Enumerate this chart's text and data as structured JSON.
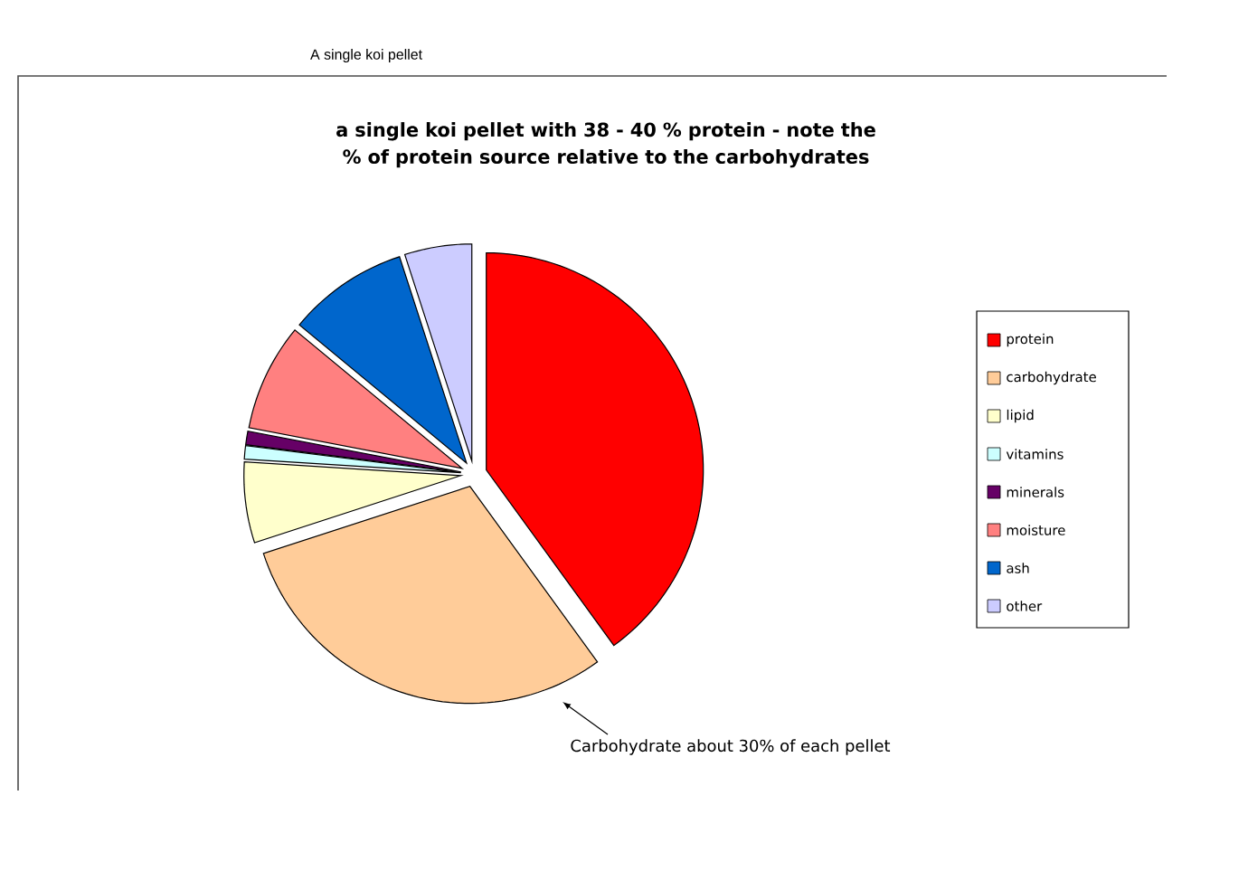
{
  "chart_data": {
    "type": "pie",
    "title": "A single koi pellet",
    "subtitle": "a single koi pellet with 38 - 40 % protein - note the % of protein source relative to the carbohydrates",
    "categories": [
      "protein",
      "carbohydrate",
      "lipid",
      "vitamins",
      "minerals",
      "moisture",
      "ash",
      "other"
    ],
    "values": [
      40,
      30,
      6,
      1,
      1,
      8,
      9,
      5
    ],
    "colors": [
      "#ff0000",
      "#ffcc99",
      "#ffffcc",
      "#ccffff",
      "#660066",
      "#ff8080",
      "#0066cc",
      "#ccccff"
    ],
    "legend": "right",
    "annotations": [
      "Carbohydrate about 30% of each pellet"
    ]
  }
}
